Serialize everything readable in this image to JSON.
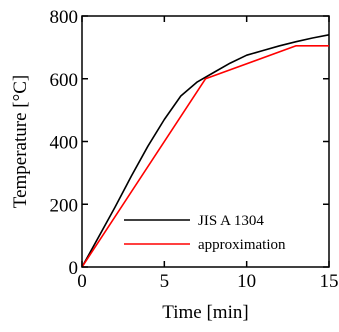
{
  "chart_data": {
    "type": "line",
    "xlabel": "Time [min]",
    "ylabel": "Temperature [°C]",
    "xlim": [
      0,
      15
    ],
    "ylim": [
      0,
      800
    ],
    "x_ticks": [
      0,
      5,
      10,
      15
    ],
    "y_ticks": [
      0,
      200,
      400,
      600,
      800
    ],
    "x_tick_labels": [
      "0",
      "5",
      "10",
      "15"
    ],
    "y_tick_labels": [
      "0",
      "200",
      "400",
      "600",
      "800"
    ],
    "grid": false,
    "legend_position": "bottom-right",
    "series": [
      {
        "name": "JIS A 1304",
        "color": "#000000",
        "x": [
          0,
          1,
          2,
          3,
          4,
          5,
          6,
          7,
          8,
          9,
          10,
          11,
          12,
          13,
          14,
          15
        ],
        "y": [
          0,
          95,
          190,
          290,
          385,
          470,
          545,
          590,
          620,
          650,
          675,
          690,
          705,
          718,
          730,
          740
        ]
      },
      {
        "name": "approximation",
        "color": "#ff0000",
        "x": [
          0,
          7.5,
          13,
          15
        ],
        "y": [
          0,
          600,
          705,
          705
        ]
      }
    ]
  }
}
